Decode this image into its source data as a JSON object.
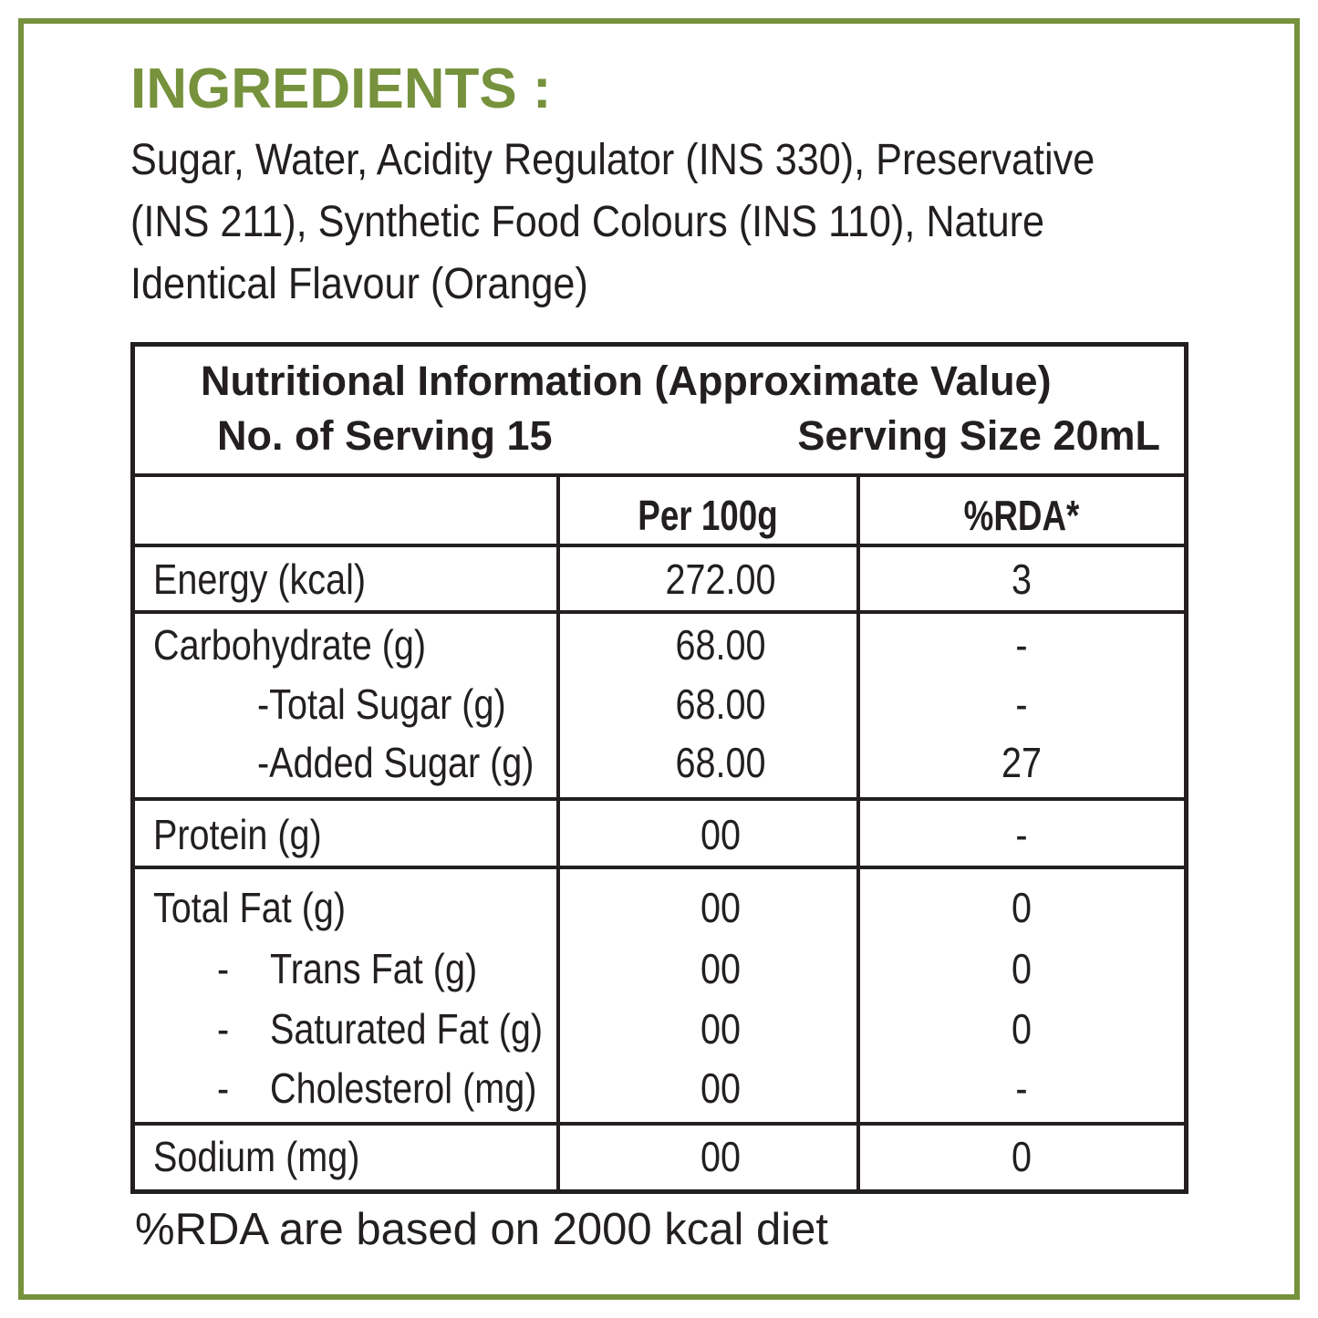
{
  "ingredients": {
    "title": "INGREDIENTS :",
    "lines": [
      "Sugar, Water, Acidity Regulator (INS 330), Preservative",
      "(INS 211), Synthetic Food Colours (INS 110), Nature",
      "Identical Flavour (Orange)"
    ]
  },
  "table": {
    "title": "Nutritional Information (Approximate Value)",
    "servings": "No. of Serving 15",
    "serving_size": "Serving Size 20mL",
    "columns": [
      "Per 100g",
      "%RDA*"
    ],
    "groups": [
      {
        "items": [
          {
            "label": "Energy (kcal)",
            "value": "272.00",
            "rda": "3"
          }
        ]
      },
      {
        "items": [
          {
            "label": "Carbohydrate (g)",
            "value": "68.00",
            "rda": "-"
          },
          {
            "label": "-Total Sugar (g)",
            "value": "68.00",
            "rda": "-"
          },
          {
            "label": "-Added Sugar (g)",
            "value": "68.00",
            "rda": "27"
          }
        ]
      },
      {
        "items": [
          {
            "label": "Protein (g)",
            "value": "00",
            "rda": "-"
          }
        ]
      },
      {
        "items": [
          {
            "label": "Total Fat (g)",
            "value": "00",
            "rda": "0"
          },
          {
            "prefix": "-",
            "label": "Trans Fat (g)",
            "value": "00",
            "rda": "0"
          },
          {
            "prefix": "-",
            "label": "Saturated Fat (g)",
            "value": "00",
            "rda": "0"
          },
          {
            "prefix": "-",
            "label": "Cholesterol (mg)",
            "value": "00",
            "rda": "-"
          }
        ]
      },
      {
        "items": [
          {
            "label": "Sodium (mg)",
            "value": "00",
            "rda": "0"
          }
        ]
      }
    ]
  },
  "footnote": "%RDA are based on 2000 kcal diet"
}
